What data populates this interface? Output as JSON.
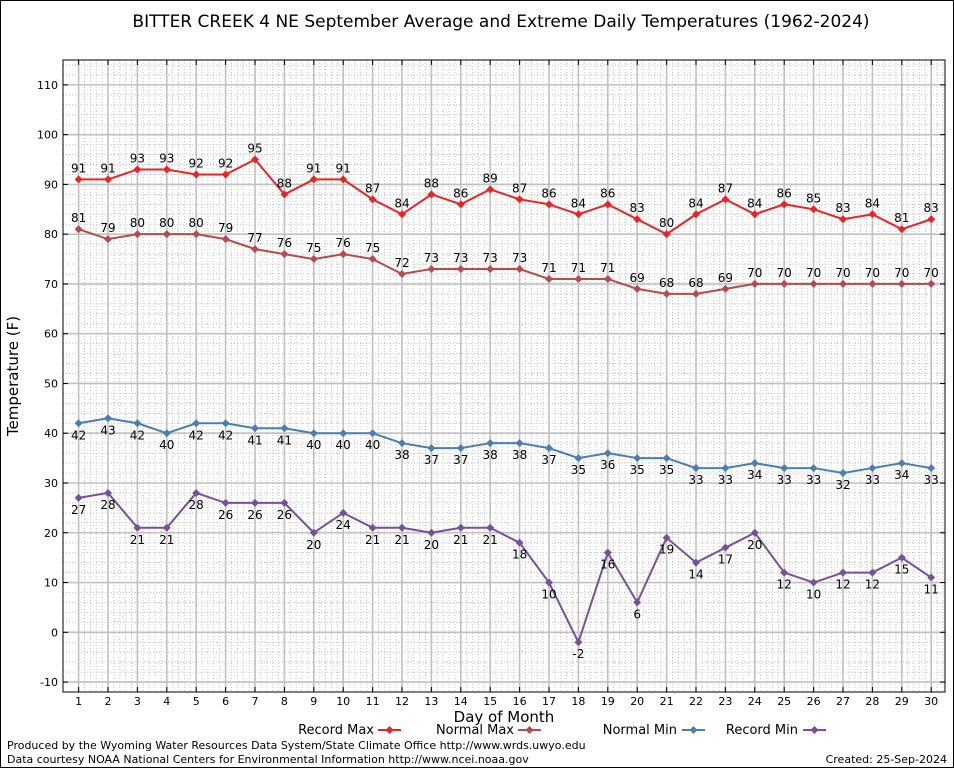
{
  "chart_data": {
    "type": "line",
    "title": "BITTER CREEK 4 NE September Average and Extreme Daily Temperatures (1962-2024)",
    "xlabel": "Day of Month",
    "ylabel": "Temperature (F)",
    "x": [
      1,
      2,
      3,
      4,
      5,
      6,
      7,
      8,
      9,
      10,
      11,
      12,
      13,
      14,
      15,
      16,
      17,
      18,
      19,
      20,
      21,
      22,
      23,
      24,
      25,
      26,
      27,
      28,
      29,
      30
    ],
    "ylim": [
      -12,
      115
    ],
    "yticks": [
      -10,
      0,
      10,
      20,
      30,
      40,
      50,
      60,
      70,
      80,
      90,
      100,
      110
    ],
    "grid": true,
    "legend_position": "bottom",
    "series": [
      {
        "name": "Record Max",
        "color": "#ee2222",
        "label_position": "above",
        "values": [
          91,
          91,
          93,
          93,
          92,
          92,
          95,
          88,
          91,
          91,
          87,
          84,
          88,
          86,
          89,
          87,
          86,
          84,
          86,
          83,
          80,
          84,
          87,
          84,
          86,
          85,
          83,
          84,
          81,
          83
        ]
      },
      {
        "name": "Normal Max",
        "color": "#b84a4a",
        "label_position": "above",
        "values": [
          81,
          79,
          80,
          80,
          80,
          79,
          77,
          76,
          75,
          76,
          75,
          72,
          73,
          73,
          73,
          73,
          71,
          71,
          71,
          69,
          68,
          68,
          69,
          70,
          70,
          70,
          70,
          70,
          70,
          70
        ]
      },
      {
        "name": "Normal Min",
        "color": "#4a7eb4",
        "label_position": "below",
        "values": [
          42,
          43,
          42,
          40,
          42,
          42,
          41,
          41,
          40,
          40,
          40,
          38,
          37,
          37,
          38,
          38,
          37,
          35,
          36,
          35,
          35,
          33,
          33,
          34,
          33,
          33,
          32,
          33,
          34,
          33
        ]
      },
      {
        "name": "Record Min",
        "color": "#7a4f9a",
        "label_position": "below",
        "values": [
          27,
          28,
          21,
          21,
          28,
          26,
          26,
          26,
          20,
          24,
          21,
          21,
          20,
          21,
          21,
          18,
          10,
          -2,
          16,
          6,
          19,
          14,
          17,
          20,
          12,
          10,
          12,
          12,
          15,
          11
        ]
      }
    ]
  },
  "footer": {
    "produced_by": "Produced by the Wyoming Water Resources Data System/State Climate Office http://www.wrds.uwyo.edu",
    "courtesy": "Data courtesy NOAA National Centers for Environmental Information http://www.ncei.noaa.gov",
    "created": "Created:  25-Sep-2024"
  }
}
